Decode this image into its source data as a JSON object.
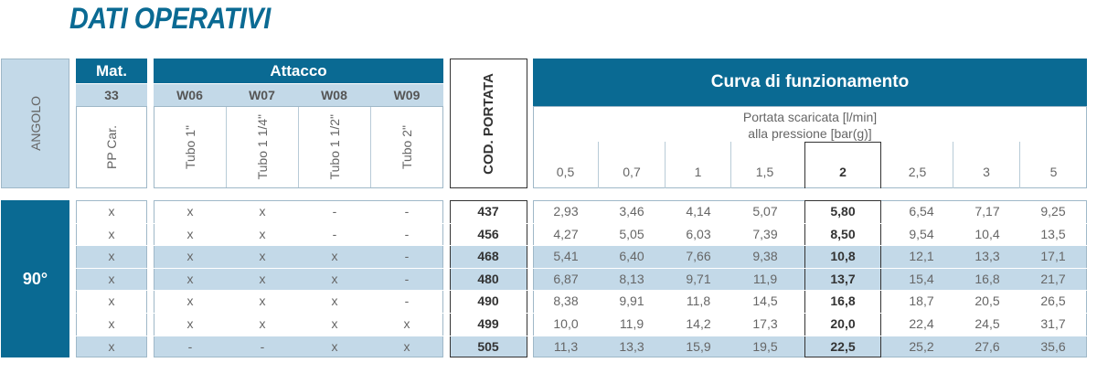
{
  "title": "DATI OPERATIVI",
  "headers": {
    "angolo": "ANGOLO",
    "mat": "Mat.",
    "mat_code": "33",
    "mat_desc": "PP Car.",
    "attacco": "Attacco",
    "attacco_codes": [
      "W06",
      "W07",
      "W08",
      "W09"
    ],
    "attacco_desc": [
      "Tubo 1\"",
      "Tubo 1 1/4\"",
      "Tubo 1 1/2\"",
      "Tubo 2\""
    ],
    "cod_portata": "COD. PORTATA",
    "curva": "Curva di funzionamento",
    "portata_line1": "Portata scaricata [l/min]",
    "portata_line2": "alla pressione [bar(g)]",
    "pressures": [
      "0,5",
      "0,7",
      "1",
      "1,5",
      "2",
      "2,5",
      "3",
      "5"
    ]
  },
  "angle_value": "90°",
  "rows": [
    {
      "mat": "x",
      "att": [
        "x",
        "x",
        "-",
        "-"
      ],
      "cod": "437",
      "vals": [
        "2,93",
        "3,46",
        "4,14",
        "5,07",
        "5,80",
        "6,54",
        "7,17",
        "9,25"
      ]
    },
    {
      "mat": "x",
      "att": [
        "x",
        "x",
        "-",
        "-"
      ],
      "cod": "456",
      "vals": [
        "4,27",
        "5,05",
        "6,03",
        "7,39",
        "8,50",
        "9,54",
        "10,4",
        "13,5"
      ]
    },
    {
      "mat": "x",
      "att": [
        "x",
        "x",
        "x",
        "-"
      ],
      "cod": "468",
      "vals": [
        "5,41",
        "6,40",
        "7,66",
        "9,38",
        "10,8",
        "12,1",
        "13,3",
        "17,1"
      ]
    },
    {
      "mat": "x",
      "att": [
        "x",
        "x",
        "x",
        "-"
      ],
      "cod": "480",
      "vals": [
        "6,87",
        "8,13",
        "9,71",
        "11,9",
        "13,7",
        "15,4",
        "16,8",
        "21,7"
      ]
    },
    {
      "mat": "x",
      "att": [
        "x",
        "x",
        "x",
        "-"
      ],
      "cod": "490",
      "vals": [
        "8,38",
        "9,91",
        "11,8",
        "14,5",
        "16,8",
        "18,7",
        "20,5",
        "26,5"
      ]
    },
    {
      "mat": "x",
      "att": [
        "x",
        "x",
        "x",
        "x"
      ],
      "cod": "499",
      "vals": [
        "10,0",
        "11,9",
        "14,2",
        "17,3",
        "20,0",
        "22,4",
        "24,5",
        "31,7"
      ]
    },
    {
      "mat": "x",
      "att": [
        "-",
        "-",
        "x",
        "x"
      ],
      "cod": "505",
      "vals": [
        "11,3",
        "13,3",
        "15,9",
        "19,5",
        "22,5",
        "25,2",
        "27,6",
        "35,6"
      ]
    }
  ],
  "shaded_rows": [
    2,
    3,
    6
  ]
}
